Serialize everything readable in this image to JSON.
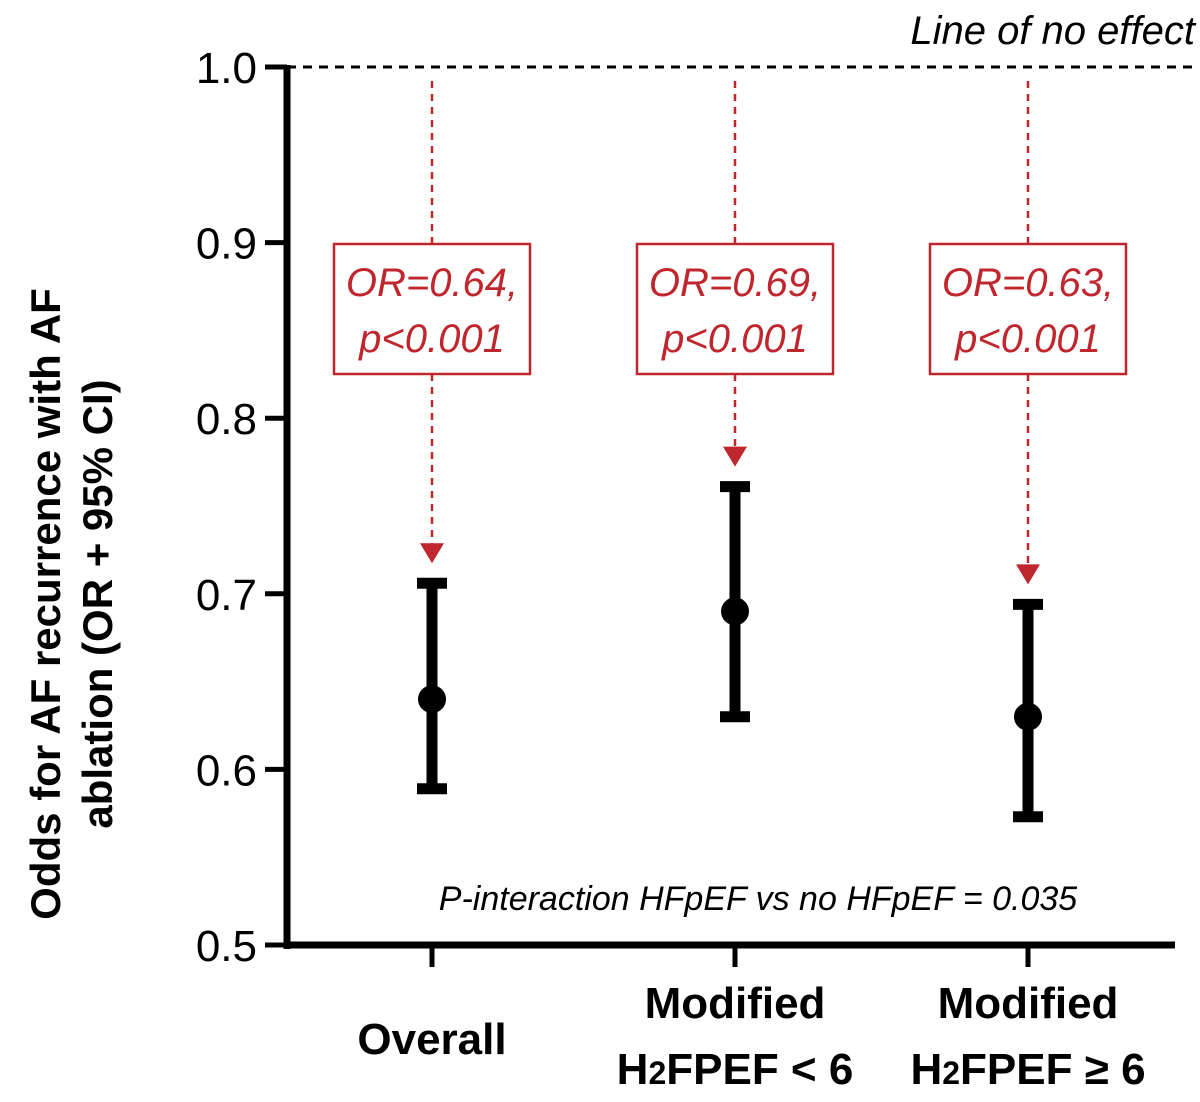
{
  "chart_data": {
    "type": "errorbar",
    "title": "",
    "xlabel": "",
    "ylabel_lines": [
      "Odds for AF recurrence with AF",
      "ablation (OR + 95% CI)"
    ],
    "ylim": [
      0.5,
      1.0
    ],
    "yticks": [
      "0.5",
      "0.6",
      "0.7",
      "0.8",
      "0.9",
      "1.0"
    ],
    "reference_line": {
      "value": 1.0,
      "label": "Line of no effect"
    },
    "categories": [
      {
        "lines": [
          "Overall"
        ],
        "or": 0.64,
        "ci_low": 0.589,
        "ci_high": 0.706,
        "annotation": [
          "OR=0.64,",
          "p<0.001"
        ]
      },
      {
        "lines": [
          "Modified",
          "H2FPEF < 6"
        ],
        "or": 0.69,
        "ci_low": 0.63,
        "ci_high": 0.761,
        "annotation": [
          "OR=0.69,",
          "p<0.001"
        ]
      },
      {
        "lines": [
          "Modified",
          "H2FPEF ≥ 6"
        ],
        "or": 0.63,
        "ci_low": 0.573,
        "ci_high": 0.694,
        "annotation": [
          "OR=0.63,",
          "p<0.001"
        ]
      }
    ],
    "note": "P-interaction HFpEF vs no HFpEF = 0.035",
    "colors": {
      "marker": "#000000",
      "annotation": "#c0262d",
      "axis": "#000000"
    }
  }
}
